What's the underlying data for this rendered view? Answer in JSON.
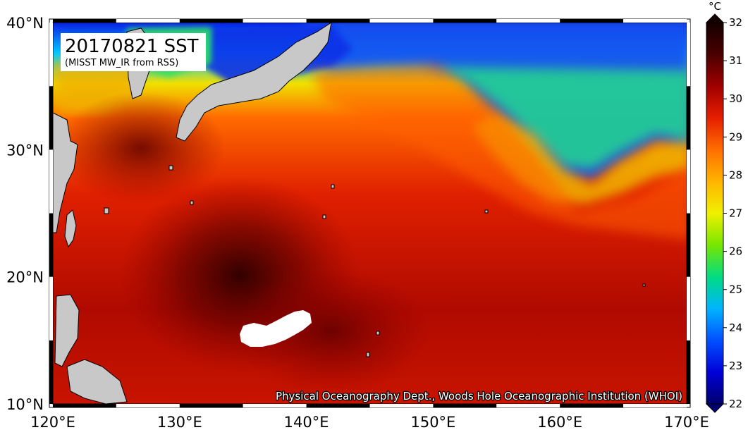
{
  "title": {
    "date_label": "20170821 SST",
    "source_label": "(MISST MW_IR from RSS)"
  },
  "credit": "Physical Oceanography Dept., Woods Hole Oceanographic Institution (WHOI)",
  "map": {
    "lon_min": 120,
    "lon_max": 170,
    "lat_min": 10,
    "lat_max": 40,
    "lon_tick_labels": [
      "120°E",
      "130°E",
      "140°E",
      "150°E",
      "160°E",
      "170°E"
    ],
    "lat_tick_labels": [
      "10°N",
      "20°N",
      "30°N",
      "40°N"
    ]
  },
  "colorbar": {
    "unit": "°C",
    "min": 22,
    "max": 32,
    "tick_labels": [
      "22",
      "23",
      "24",
      "25",
      "26",
      "27",
      "28",
      "29",
      "30",
      "31",
      "32"
    ],
    "colors": [
      "#00006e",
      "#0000d8",
      "#0050ff",
      "#00b4ff",
      "#00dc82",
      "#78e600",
      "#f0f000",
      "#ffb400",
      "#ff6e00",
      "#e61e00",
      "#a00000",
      "#4a0000",
      "#140000"
    ]
  },
  "colors": {
    "land": "#c8c8c8",
    "coastline": "#000000",
    "no_data": "#ffffff"
  }
}
